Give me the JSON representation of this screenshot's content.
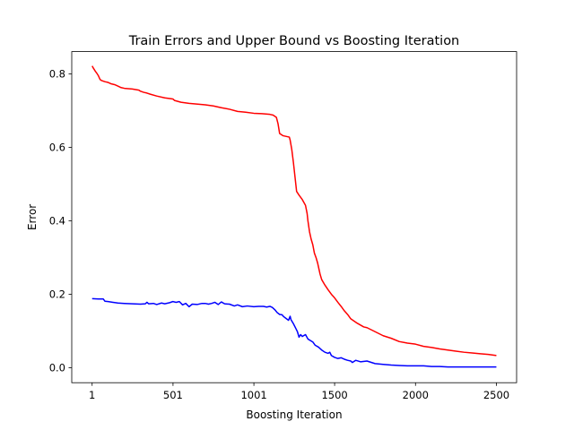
{
  "chart_data": {
    "type": "line",
    "title": "Train Errors and Upper Bound vs Boosting Iteration",
    "xlabel": "Boosting Iteration",
    "ylabel": "Error",
    "xlim": [
      -125,
      2625
    ],
    "ylim": [
      -0.041,
      0.861
    ],
    "xticks": [
      {
        "value": 1,
        "label": "1"
      },
      {
        "value": 501,
        "label": "501"
      },
      {
        "value": 1001,
        "label": "1001"
      },
      {
        "value": 1500,
        "label": "1500"
      },
      {
        "value": 2000,
        "label": "2000"
      },
      {
        "value": 2500,
        "label": "2500"
      }
    ],
    "yticks": [
      {
        "value": 0.0,
        "label": "0.0"
      },
      {
        "value": 0.2,
        "label": "0.2"
      },
      {
        "value": 0.4,
        "label": "0.4"
      },
      {
        "value": 0.6,
        "label": "0.6"
      },
      {
        "value": 0.8,
        "label": "0.8"
      }
    ],
    "grid": false,
    "legend": "none",
    "series": [
      {
        "color": "#ff0000",
        "points": [
          [
            1,
            0.822
          ],
          [
            10,
            0.815
          ],
          [
            20,
            0.808
          ],
          [
            30,
            0.802
          ],
          [
            40,
            0.795
          ],
          [
            50,
            0.785
          ],
          [
            60,
            0.782
          ],
          [
            80,
            0.779
          ],
          [
            100,
            0.777
          ],
          [
            120,
            0.773
          ],
          [
            140,
            0.771
          ],
          [
            160,
            0.767
          ],
          [
            180,
            0.763
          ],
          [
            200,
            0.761
          ],
          [
            250,
            0.759
          ],
          [
            290,
            0.756
          ],
          [
            300,
            0.753
          ],
          [
            320,
            0.75
          ],
          [
            340,
            0.748
          ],
          [
            360,
            0.745
          ],
          [
            400,
            0.74
          ],
          [
            450,
            0.735
          ],
          [
            500,
            0.732
          ],
          [
            510,
            0.728
          ],
          [
            550,
            0.723
          ],
          [
            600,
            0.72
          ],
          [
            700,
            0.716
          ],
          [
            750,
            0.713
          ],
          [
            800,
            0.708
          ],
          [
            850,
            0.704
          ],
          [
            900,
            0.698
          ],
          [
            950,
            0.696
          ],
          [
            1000,
            0.693
          ],
          [
            1050,
            0.692
          ],
          [
            1100,
            0.69
          ],
          [
            1120,
            0.688
          ],
          [
            1140,
            0.682
          ],
          [
            1150,
            0.665
          ],
          [
            1160,
            0.638
          ],
          [
            1180,
            0.632
          ],
          [
            1220,
            0.628
          ],
          [
            1225,
            0.62
          ],
          [
            1235,
            0.595
          ],
          [
            1245,
            0.56
          ],
          [
            1255,
            0.52
          ],
          [
            1265,
            0.48
          ],
          [
            1280,
            0.47
          ],
          [
            1300,
            0.458
          ],
          [
            1320,
            0.442
          ],
          [
            1330,
            0.42
          ],
          [
            1335,
            0.4
          ],
          [
            1345,
            0.37
          ],
          [
            1355,
            0.35
          ],
          [
            1365,
            0.335
          ],
          [
            1375,
            0.312
          ],
          [
            1385,
            0.3
          ],
          [
            1395,
            0.285
          ],
          [
            1400,
            0.275
          ],
          [
            1410,
            0.255
          ],
          [
            1420,
            0.24
          ],
          [
            1440,
            0.225
          ],
          [
            1460,
            0.212
          ],
          [
            1480,
            0.2
          ],
          [
            1500,
            0.19
          ],
          [
            1520,
            0.178
          ],
          [
            1540,
            0.167
          ],
          [
            1560,
            0.155
          ],
          [
            1580,
            0.145
          ],
          [
            1600,
            0.133
          ],
          [
            1640,
            0.121
          ],
          [
            1680,
            0.111
          ],
          [
            1700,
            0.109
          ],
          [
            1750,
            0.098
          ],
          [
            1800,
            0.087
          ],
          [
            1850,
            0.08
          ],
          [
            1900,
            0.071
          ],
          [
            1950,
            0.067
          ],
          [
            2000,
            0.064
          ],
          [
            2050,
            0.058
          ],
          [
            2100,
            0.055
          ],
          [
            2150,
            0.051
          ],
          [
            2200,
            0.048
          ],
          [
            2250,
            0.045
          ],
          [
            2300,
            0.042
          ],
          [
            2350,
            0.04
          ],
          [
            2400,
            0.038
          ],
          [
            2450,
            0.036
          ],
          [
            2500,
            0.033
          ]
        ]
      },
      {
        "color": "#0000ff",
        "points": [
          [
            1,
            0.188
          ],
          [
            40,
            0.187
          ],
          [
            70,
            0.187
          ],
          [
            80,
            0.181
          ],
          [
            100,
            0.18
          ],
          [
            130,
            0.178
          ],
          [
            160,
            0.176
          ],
          [
            200,
            0.175
          ],
          [
            250,
            0.174
          ],
          [
            300,
            0.173
          ],
          [
            330,
            0.174
          ],
          [
            340,
            0.178
          ],
          [
            350,
            0.174
          ],
          [
            380,
            0.175
          ],
          [
            400,
            0.172
          ],
          [
            430,
            0.176
          ],
          [
            450,
            0.174
          ],
          [
            480,
            0.177
          ],
          [
            500,
            0.18
          ],
          [
            520,
            0.178
          ],
          [
            540,
            0.18
          ],
          [
            560,
            0.171
          ],
          [
            580,
            0.175
          ],
          [
            600,
            0.166
          ],
          [
            620,
            0.173
          ],
          [
            650,
            0.172
          ],
          [
            680,
            0.175
          ],
          [
            700,
            0.175
          ],
          [
            720,
            0.173
          ],
          [
            740,
            0.175
          ],
          [
            760,
            0.178
          ],
          [
            780,
            0.172
          ],
          [
            800,
            0.179
          ],
          [
            820,
            0.174
          ],
          [
            850,
            0.173
          ],
          [
            880,
            0.168
          ],
          [
            900,
            0.171
          ],
          [
            930,
            0.166
          ],
          [
            960,
            0.168
          ],
          [
            1000,
            0.166
          ],
          [
            1030,
            0.167
          ],
          [
            1060,
            0.167
          ],
          [
            1080,
            0.165
          ],
          [
            1100,
            0.167
          ],
          [
            1115,
            0.164
          ],
          [
            1130,
            0.158
          ],
          [
            1145,
            0.15
          ],
          [
            1160,
            0.145
          ],
          [
            1175,
            0.144
          ],
          [
            1185,
            0.139
          ],
          [
            1200,
            0.134
          ],
          [
            1215,
            0.129
          ],
          [
            1225,
            0.14
          ],
          [
            1230,
            0.131
          ],
          [
            1245,
            0.12
          ],
          [
            1260,
            0.107
          ],
          [
            1270,
            0.098
          ],
          [
            1280,
            0.083
          ],
          [
            1290,
            0.09
          ],
          [
            1300,
            0.085
          ],
          [
            1320,
            0.09
          ],
          [
            1335,
            0.078
          ],
          [
            1350,
            0.074
          ],
          [
            1365,
            0.07
          ],
          [
            1380,
            0.061
          ],
          [
            1400,
            0.056
          ],
          [
            1420,
            0.048
          ],
          [
            1440,
            0.042
          ],
          [
            1460,
            0.039
          ],
          [
            1470,
            0.042
          ],
          [
            1480,
            0.033
          ],
          [
            1500,
            0.028
          ],
          [
            1520,
            0.025
          ],
          [
            1540,
            0.027
          ],
          [
            1560,
            0.023
          ],
          [
            1580,
            0.02
          ],
          [
            1600,
            0.018
          ],
          [
            1610,
            0.014
          ],
          [
            1630,
            0.02
          ],
          [
            1660,
            0.016
          ],
          [
            1700,
            0.018
          ],
          [
            1750,
            0.011
          ],
          [
            1800,
            0.009
          ],
          [
            1850,
            0.007
          ],
          [
            1900,
            0.006
          ],
          [
            1950,
            0.005
          ],
          [
            2000,
            0.005
          ],
          [
            2050,
            0.005
          ],
          [
            2100,
            0.003
          ],
          [
            2150,
            0.003
          ],
          [
            2200,
            0.002
          ],
          [
            2300,
            0.002
          ],
          [
            2400,
            0.002
          ],
          [
            2500,
            0.002
          ]
        ]
      }
    ]
  }
}
